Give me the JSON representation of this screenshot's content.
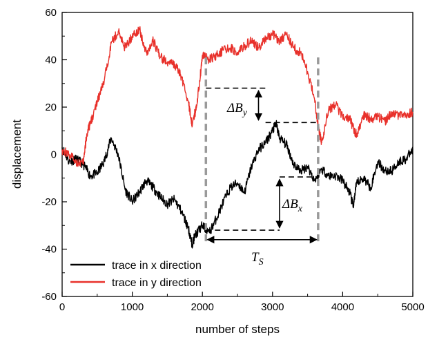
{
  "chart_data": {
    "type": "line",
    "title": "",
    "xlabel": "number of steps",
    "ylabel": "displacement",
    "xlim": [
      0,
      5000
    ],
    "ylim": [
      -60,
      60
    ],
    "x_ticks": [
      0,
      1000,
      2000,
      3000,
      4000,
      5000
    ],
    "y_ticks": [
      -60,
      -40,
      -20,
      0,
      20,
      40,
      60
    ],
    "x_tick_labels": [
      "0",
      "1000",
      "2000",
      "3000",
      "4000",
      "5000"
    ],
    "y_tick_labels": [
      "-60",
      "-40",
      "-20",
      "0",
      "20",
      "40",
      "60"
    ],
    "grid": false,
    "legend_position": "bottom-left",
    "series": [
      {
        "name": "trace in x direction",
        "color": "#000000",
        "x": [
          0,
          100,
          200,
          300,
          400,
          500,
          600,
          700,
          800,
          900,
          1000,
          1100,
          1200,
          1300,
          1400,
          1500,
          1600,
          1700,
          1800,
          1850,
          1900,
          2000,
          2100,
          2200,
          2300,
          2400,
          2500,
          2600,
          2700,
          2800,
          2900,
          3000,
          3050,
          3100,
          3200,
          3300,
          3400,
          3500,
          3600,
          3700,
          3800,
          3900,
          4000,
          4100,
          4150,
          4200,
          4300,
          4400,
          4500,
          4600,
          4700,
          4800,
          4900,
          5000
        ],
        "y": [
          3,
          -3,
          -2,
          -4,
          -9,
          -8,
          -3,
          7,
          0,
          -15,
          -20,
          -16,
          -11,
          -14,
          -18,
          -21,
          -19,
          -24,
          -31,
          -38,
          -34,
          -30,
          -33,
          -27,
          -20,
          -14,
          -12,
          -16,
          -5,
          2,
          5,
          10,
          13,
          7,
          4,
          -4,
          -7,
          -5,
          -11,
          -6,
          -9,
          -9,
          -11,
          -16,
          -22,
          -12,
          -10,
          -14,
          -3,
          -7,
          -7,
          -3,
          -2,
          2
        ]
      },
      {
        "name": "trace in y direction",
        "color": "#e8302a",
        "x": [
          0,
          100,
          200,
          300,
          350,
          400,
          500,
          600,
          700,
          800,
          900,
          1000,
          1100,
          1200,
          1300,
          1400,
          1500,
          1600,
          1700,
          1800,
          1850,
          1900,
          1950,
          2000,
          2100,
          2200,
          2300,
          2400,
          2500,
          2600,
          2700,
          2800,
          2900,
          3000,
          3100,
          3200,
          3300,
          3400,
          3500,
          3600,
          3650,
          3700,
          3800,
          3900,
          4000,
          4100,
          4200,
          4300,
          4400,
          4500,
          4600,
          4700,
          4800,
          4900,
          5000
        ],
        "y": [
          2,
          0,
          -3,
          -4,
          8,
          13,
          22,
          31,
          47,
          52,
          45,
          50,
          53,
          43,
          48,
          41,
          39,
          38,
          33,
          22,
          13,
          18,
          28,
          42,
          40,
          42,
          44,
          45,
          43,
          46,
          48,
          45,
          49,
          51,
          48,
          51,
          45,
          43,
          35,
          23,
          12,
          5,
          19,
          21,
          16,
          15,
          8,
          17,
          15,
          16,
          14,
          18,
          16,
          17,
          18
        ]
      }
    ],
    "annotations": {
      "delta_by": "ΔB",
      "delta_by_sub": "y",
      "delta_bx": "ΔB",
      "delta_bx_sub": "x",
      "ts": "T",
      "ts_sub": "S"
    }
  }
}
